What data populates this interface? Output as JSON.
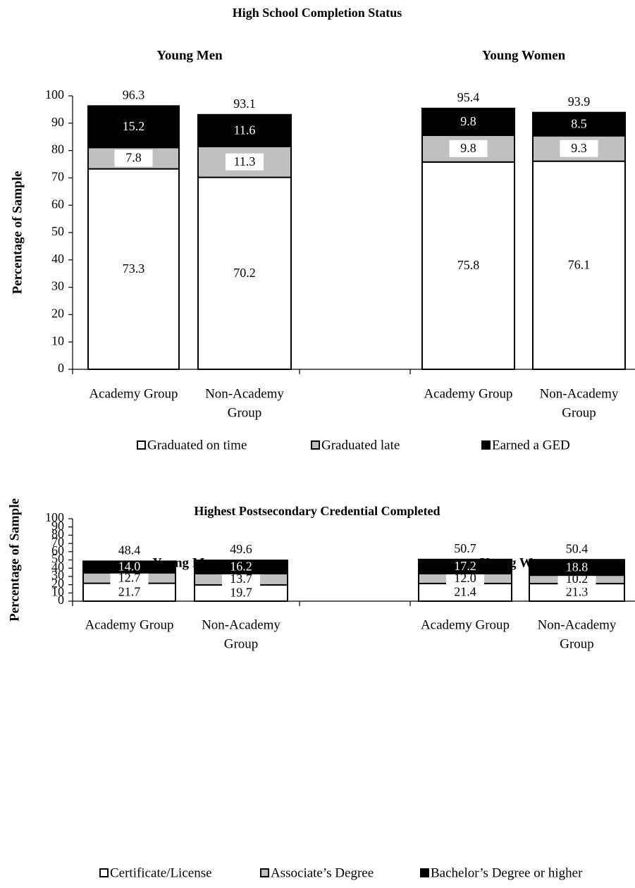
{
  "chart_data": [
    {
      "type": "bar",
      "stacked": true,
      "title": "High School Completion Status",
      "ylabel": "Percentage of Sample",
      "ylim": [
        0,
        100
      ],
      "yticks": [
        0,
        10,
        20,
        30,
        40,
        50,
        60,
        70,
        80,
        90,
        100
      ],
      "groups": [
        {
          "label": "Young Men",
          "categories": [
            "Academy Group",
            "Non-Academy Group"
          ]
        },
        {
          "label": "Young Women",
          "categories": [
            "Academy Group",
            "Non-Academy Group"
          ]
        }
      ],
      "category_lines": [
        [
          "Academy Group"
        ],
        [
          "Non-Academy",
          "Group"
        ]
      ],
      "series": [
        {
          "name": "Graduated on time",
          "color": "#ffffff",
          "values": [
            73.3,
            70.2,
            75.8,
            76.1
          ]
        },
        {
          "name": "Graduated late",
          "color": "#c0c0c0",
          "values": [
            7.8,
            11.3,
            9.8,
            9.3
          ]
        },
        {
          "name": "Earned a GED",
          "color": "#000000",
          "values": [
            15.2,
            11.6,
            9.8,
            8.5
          ]
        }
      ],
      "totals": [
        96.3,
        93.1,
        95.4,
        93.9
      ],
      "legend_position": "bottom"
    },
    {
      "type": "bar",
      "stacked": true,
      "title": "Highest Postsecondary Credential Completed",
      "ylabel": "Percentage of Sample",
      "ylim": [
        0,
        100
      ],
      "yticks": [
        0,
        10,
        20,
        30,
        40,
        50,
        60,
        70,
        80,
        90,
        100
      ],
      "groups": [
        {
          "label": "Young Men",
          "categories": [
            "Academy Group",
            "Non-Academy Group"
          ]
        },
        {
          "label": "Young Women",
          "categories": [
            "Academy Group",
            "Non-Academy Group"
          ]
        }
      ],
      "category_lines": [
        [
          "Academy Group"
        ],
        [
          "Non-Academy",
          "Group"
        ]
      ],
      "series": [
        {
          "name": "Certificate/License",
          "color": "#ffffff",
          "values": [
            21.7,
            19.7,
            21.4,
            21.3
          ]
        },
        {
          "name": "Associate’s Degree",
          "color": "#c0c0c0",
          "values": [
            12.7,
            13.7,
            12.0,
            10.2
          ]
        },
        {
          "name": "Bachelor’s Degree or higher",
          "color": "#000000",
          "values": [
            14.0,
            16.2,
            17.2,
            18.8
          ]
        }
      ],
      "totals": [
        48.4,
        49.6,
        50.7,
        50.4
      ],
      "legend_position": "bottom"
    }
  ]
}
